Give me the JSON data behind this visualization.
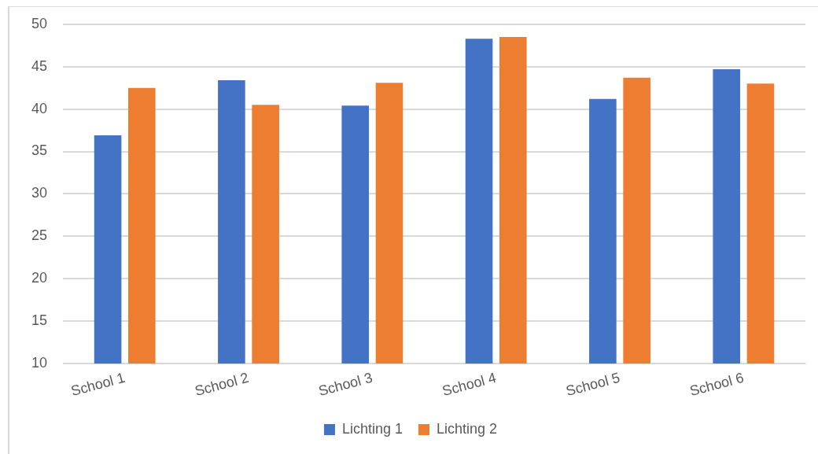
{
  "chart_data": {
    "type": "bar",
    "categories": [
      "School 1",
      "School 2",
      "School 3",
      "School 4",
      "School 5",
      "School 6"
    ],
    "series": [
      {
        "name": "Lichting 1",
        "color": "#4472c4",
        "values": [
          36.9,
          43.4,
          40.4,
          48.3,
          41.2,
          44.7
        ]
      },
      {
        "name": "Lichting 2",
        "color": "#ed7d31",
        "values": [
          42.5,
          40.5,
          43.1,
          48.5,
          43.7,
          43.0
        ]
      }
    ],
    "ylim": [
      10,
      50
    ],
    "yticks": [
      10,
      15,
      20,
      25,
      30,
      35,
      40,
      45,
      50
    ],
    "grid": "y",
    "legend": "bottom"
  }
}
